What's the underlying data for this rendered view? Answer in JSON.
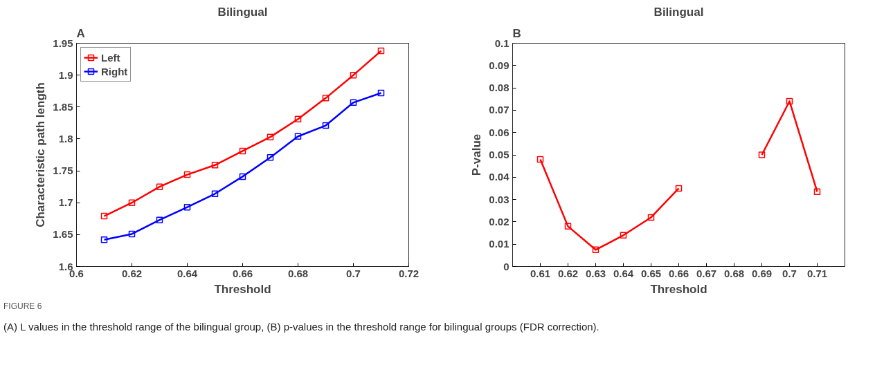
{
  "chart_data": [
    {
      "type": "line",
      "title": "Bilingual",
      "xlabel": "Threshold",
      "ylabel": "Characteristic path length",
      "x": [
        0.61,
        0.62,
        0.63,
        0.64,
        0.65,
        0.66,
        0.67,
        0.68,
        0.69,
        0.7,
        0.71
      ],
      "series": [
        {
          "name": "Left",
          "color": "#ff0000",
          "values": [
            1.679,
            1.7,
            1.725,
            1.744,
            1.759,
            1.781,
            1.803,
            1.831,
            1.864,
            1.9,
            1.938
          ]
        },
        {
          "name": "Right",
          "color": "#0000ff",
          "values": [
            1.642,
            1.651,
            1.673,
            1.693,
            1.714,
            1.741,
            1.771,
            1.804,
            1.821,
            1.857,
            1.872
          ]
        }
      ],
      "xlim": [
        0.6,
        0.72
      ],
      "xticks": [
        0.6,
        0.62,
        0.64,
        0.66,
        0.68,
        0.7,
        0.72
      ],
      "ylim": [
        1.6,
        1.95
      ],
      "yticks": [
        1.6,
        1.65,
        1.7,
        1.75,
        1.8,
        1.85,
        1.9,
        1.95
      ],
      "grid": false,
      "legend": "top left",
      "marker": "square",
      "line_style": "solid",
      "annotations": [
        "A",
        "FIGURE 6",
        "(A) L values in the threshold range of the bilingual group, (B) p-values in the threshold range for bilingual groups (FDR correction)."
      ]
    },
    {
      "type": "line",
      "title": "Bilingual",
      "xlabel": "Threshold",
      "ylabel": "P-value",
      "x": [
        0.61,
        0.62,
        0.63,
        0.64,
        0.65,
        0.66,
        0.67,
        0.68,
        0.69,
        0.7,
        0.71
      ],
      "series": [
        {
          "color": "#ff0000",
          "values": [
            0.048,
            0.018,
            0.0075,
            0.014,
            0.022,
            0.035,
            null,
            null,
            0.05,
            0.074,
            0.0335
          ]
        }
      ],
      "xlim": [
        0.6,
        0.72
      ],
      "xticks": [
        0.61,
        0.62,
        0.63,
        0.64,
        0.65,
        0.66,
        0.67,
        0.68,
        0.69,
        0.7,
        0.71
      ],
      "ylim": [
        0,
        0.1
      ],
      "yticks": [
        0,
        0.01,
        0.02,
        0.03,
        0.04,
        0.05,
        0.06,
        0.07,
        0.08,
        0.09,
        0.1
      ],
      "grid": false,
      "legend": false,
      "marker": "square",
      "line_style": "solid",
      "annotations": [
        "B"
      ]
    }
  ]
}
